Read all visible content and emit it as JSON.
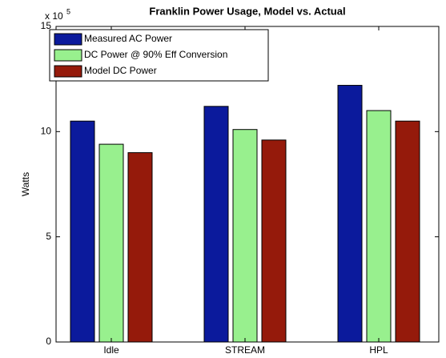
{
  "chart_data": {
    "type": "bar",
    "title": "Franklin Power Usage, Model vs. Actual",
    "y_label": "Watts",
    "y_multiplier": {
      "base": "x 10",
      "exponent": "5"
    },
    "categories": [
      "Idle",
      "STREAM",
      "HPL"
    ],
    "series": [
      {
        "name": "Measured AC Power",
        "color": "#0b1a9c",
        "values": [
          10.5,
          11.2,
          12.2
        ]
      },
      {
        "name": "DC Power @ 90% Eff Conversion",
        "color": "#98f08e",
        "values": [
          9.4,
          10.1,
          11.0
        ]
      },
      {
        "name": "Model DC Power",
        "color": "#951a0b",
        "values": [
          9.0,
          9.6,
          10.5
        ]
      }
    ],
    "ylim": [
      0,
      15
    ],
    "yticks": [
      0,
      5,
      10,
      15
    ],
    "legend": "upper-left",
    "grid": false
  }
}
